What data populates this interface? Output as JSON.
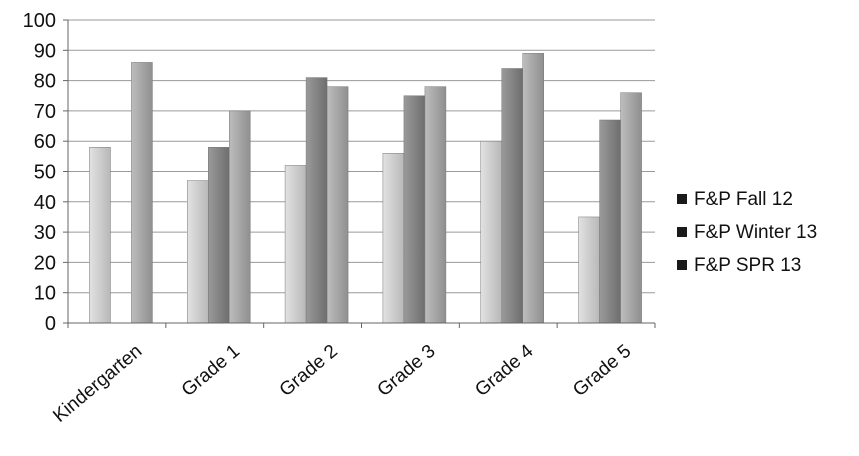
{
  "chart_data": {
    "type": "bar",
    "categories": [
      "Kindergarten",
      "Grade 1",
      "Grade 2",
      "Grade 3",
      "Grade 4",
      "Grade 5"
    ],
    "series": [
      {
        "name": "F&P Fall 12",
        "values": [
          58,
          47,
          52,
          56,
          60,
          35
        ],
        "color": "#cfcfcf"
      },
      {
        "name": "F&P Winter 13",
        "values": [
          0,
          58,
          81,
          75,
          84,
          67
        ],
        "color": "#8a8a8a"
      },
      {
        "name": "F&P SPR 13",
        "values": [
          86,
          70,
          78,
          78,
          89,
          76
        ],
        "color": "#a9a9a9"
      }
    ],
    "yticks": [
      0,
      10,
      20,
      30,
      40,
      50,
      60,
      70,
      80,
      90,
      100
    ],
    "ylim": [
      0,
      100
    ],
    "grid": true,
    "legend": "right",
    "title": "",
    "xlabel": "",
    "ylabel": ""
  }
}
